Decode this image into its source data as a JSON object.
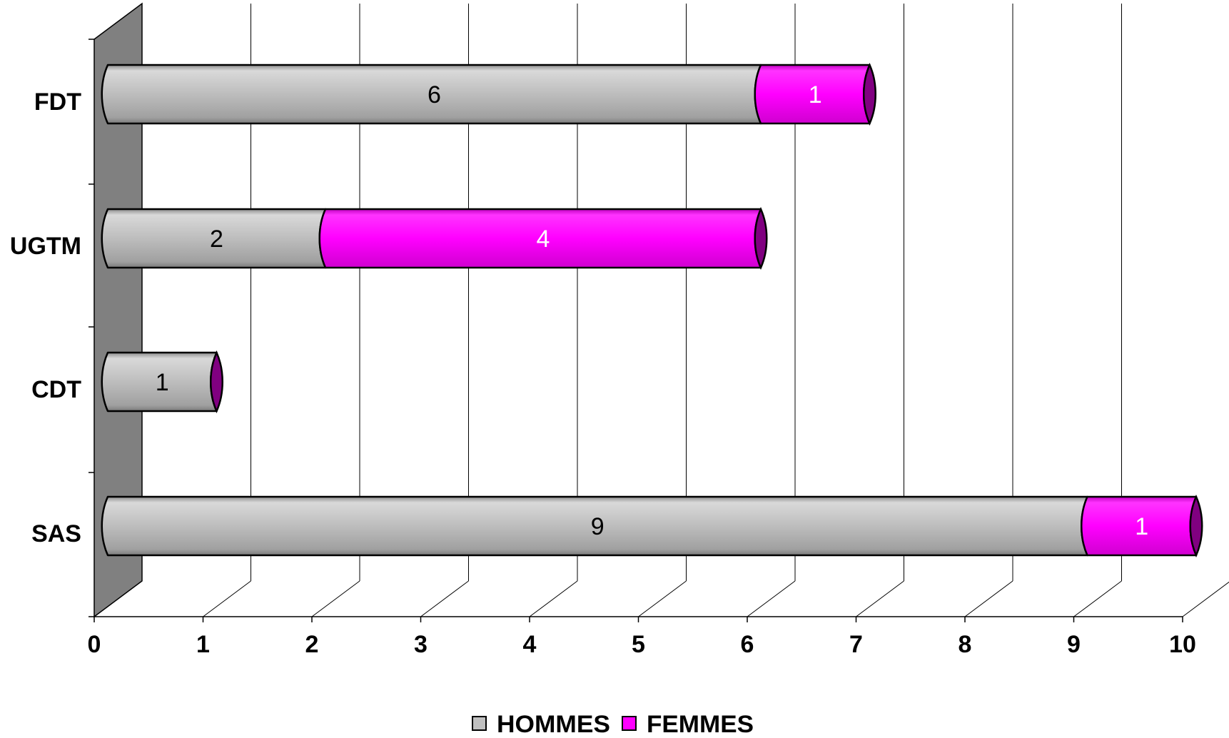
{
  "chart_data": {
    "type": "bar",
    "orientation": "horizontal",
    "stacked": true,
    "style": "3d-cylinder",
    "categories": [
      "FDT",
      "UGTM",
      "CDT",
      "SAS"
    ],
    "series": [
      {
        "name": "HOMMES",
        "values": [
          6,
          2,
          1,
          9
        ],
        "color": "#c0c0c0",
        "label_color": "#000000"
      },
      {
        "name": "FEMMES",
        "values": [
          1,
          4,
          0,
          1
        ],
        "color": "#ff00ff",
        "label_color": "#ffffff"
      }
    ],
    "data_labels": [
      {
        "series": 0,
        "values": [
          "6",
          "2",
          "1",
          "9"
        ]
      },
      {
        "series": 1,
        "values": [
          "1",
          "4",
          "",
          "1"
        ]
      }
    ],
    "xlim": [
      0,
      10
    ],
    "x_ticks": [
      "0",
      "1",
      "2",
      "3",
      "4",
      "5",
      "6",
      "7",
      "8",
      "9",
      "10"
    ],
    "grid": true,
    "legend_position": "bottom",
    "title": "",
    "xlabel": "",
    "ylabel": ""
  },
  "colors": {
    "hommes": "#c0c0c0",
    "femmes": "#ff00ff",
    "end_cap": "#800080",
    "side_wall": "#808080",
    "gridline": "#000000"
  }
}
